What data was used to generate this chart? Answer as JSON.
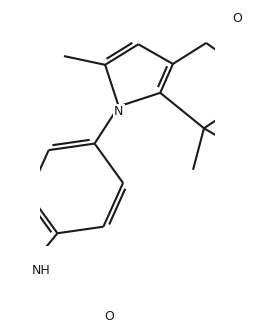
{
  "background_color": "#ffffff",
  "line_color": "#1a1a1a",
  "line_width": 1.5,
  "fig_width": 2.68,
  "fig_height": 3.26,
  "dpi": 100,
  "xlim": [
    -1.8,
    2.2
  ],
  "ylim": [
    -3.2,
    2.4
  ],
  "N_label": "N",
  "O_label": "O",
  "NH_label": "NH",
  "label_fontsize": 9.0,
  "label_color": "#1a1a1a"
}
